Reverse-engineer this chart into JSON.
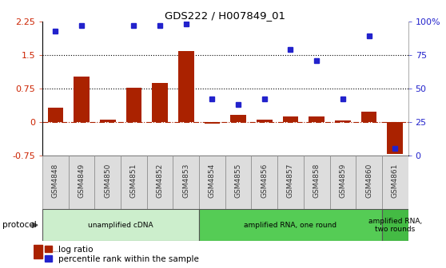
{
  "title": "GDS222 / H007849_01",
  "samples": [
    "GSM4848",
    "GSM4849",
    "GSM4850",
    "GSM4851",
    "GSM4852",
    "GSM4853",
    "GSM4854",
    "GSM4855",
    "GSM4856",
    "GSM4857",
    "GSM4858",
    "GSM4859",
    "GSM4860",
    "GSM4861"
  ],
  "log_ratio": [
    0.32,
    1.02,
    0.05,
    0.76,
    0.87,
    1.58,
    -0.03,
    0.15,
    0.06,
    0.12,
    0.12,
    0.03,
    0.23,
    -0.72
  ],
  "percentile": [
    93,
    97,
    null,
    97,
    97,
    98,
    42,
    38,
    42,
    79,
    71,
    42,
    89,
    5
  ],
  "ylim_left": [
    -0.75,
    2.25
  ],
  "ylim_right": [
    0,
    100
  ],
  "yticks_left": [
    -0.75,
    0,
    0.75,
    1.5,
    2.25
  ],
  "yticks_right": [
    0,
    25,
    50,
    75,
    100
  ],
  "ytick_labels_left": [
    "-0.75",
    "0",
    "0.75",
    "1.5",
    "2.25"
  ],
  "ytick_labels_right": [
    "0",
    "25",
    "50",
    "75",
    "100%"
  ],
  "hlines": [
    0.75,
    1.5
  ],
  "hline_zero": 0,
  "bar_color": "#AA2200",
  "dot_color": "#2222CC",
  "bg_color": "#FFFFFF",
  "protocol_groups": [
    {
      "label": "unamplified cDNA",
      "start": 0,
      "end": 5,
      "color": "#CCEECC"
    },
    {
      "label": "amplified RNA, one round",
      "start": 6,
      "end": 12,
      "color": "#55CC55"
    },
    {
      "label": "amplified RNA,\ntwo rounds",
      "start": 13,
      "end": 13,
      "color": "#44BB44"
    }
  ],
  "tick_label_color_left": "#CC2200",
  "tick_label_color_right": "#2222CC",
  "sample_box_color": "#DDDDDD",
  "sample_box_edge": "#888888"
}
